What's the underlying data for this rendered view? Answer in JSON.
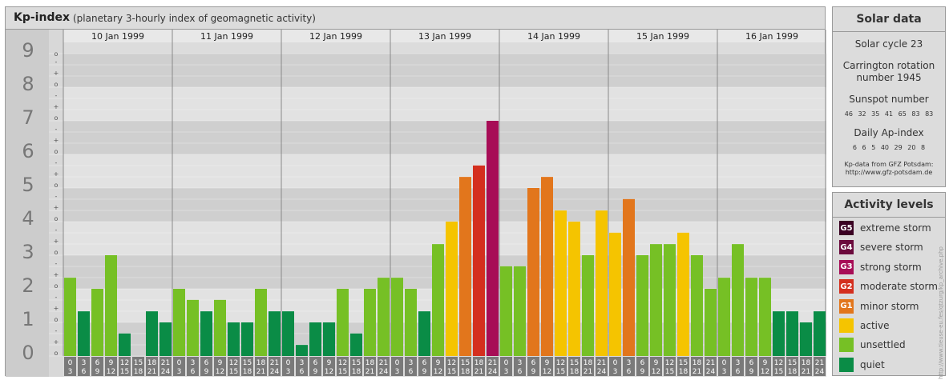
{
  "title": {
    "main": "Kp-index",
    "subtitle": "(planetary 3-hourly index of geomagnetic activity)"
  },
  "chart_data": {
    "type": "bar",
    "ylim": [
      0,
      9
    ],
    "y_major_ticks": [
      "0",
      "1",
      "2",
      "3",
      "4",
      "5",
      "6",
      "7",
      "8",
      "9"
    ],
    "y_minor_ticks": [
      "o",
      "+",
      "-"
    ],
    "days": [
      "10 Jan 1999",
      "11 Jan 1999",
      "12 Jan 1999",
      "13 Jan 1999",
      "14 Jan 1999",
      "15 Jan 1999",
      "16 Jan 1999"
    ],
    "interval_starts": [
      "0",
      "3",
      "6",
      "9",
      "12",
      "15",
      "18",
      "21"
    ],
    "interval_ends": [
      "3",
      "6",
      "9",
      "12",
      "15",
      "18",
      "21",
      "24"
    ],
    "values": [
      [
        2.33,
        1.33,
        2,
        3,
        0.67,
        0,
        1.33,
        1
      ],
      [
        2,
        1.67,
        1.33,
        1.67,
        1,
        1,
        2,
        1.33
      ],
      [
        1.33,
        0.33,
        1,
        1,
        2,
        0.67,
        2,
        2.33
      ],
      [
        2.33,
        2,
        1.33,
        3.33,
        4,
        5.33,
        5.67,
        7
      ],
      [
        2.67,
        2.67,
        5,
        5.33,
        4.33,
        4,
        3,
        4.33
      ],
      [
        3.67,
        4.67,
        3,
        3.33,
        3.33,
        3.67,
        3,
        2
      ],
      [
        2.33,
        3.33,
        2.33,
        2.33,
        1.33,
        1.33,
        1,
        1.33
      ]
    ],
    "levels": [
      [
        2,
        1,
        2,
        2,
        1,
        1,
        1,
        1
      ],
      [
        2,
        2,
        1,
        2,
        1,
        1,
        2,
        1
      ],
      [
        1,
        1,
        1,
        1,
        2,
        1,
        2,
        2
      ],
      [
        2,
        2,
        1,
        2,
        3,
        4,
        6,
        7
      ],
      [
        2,
        2,
        4,
        4,
        3,
        3,
        2,
        3
      ],
      [
        3,
        4,
        2,
        2,
        2,
        3,
        2,
        2
      ],
      [
        2,
        2,
        2,
        2,
        1,
        1,
        1,
        1
      ]
    ],
    "level_colors": {
      "1": "#0a8c46",
      "2": "#76c025",
      "3": "#f5c400",
      "4": "#e2761c",
      "5": "#d42f1e",
      "6": "#d42f1e",
      "7": "#a70d56",
      "8": "#6b0a3c",
      "9": "#3a0022"
    }
  },
  "solar_data": {
    "title": "Solar data",
    "cycle": "Solar cycle 23",
    "carrington_1": "Carrington rotation",
    "carrington_2": "number 1945",
    "sunspot_title": "Sunspot number",
    "sunspot_values": "46 32 35 41 65 83 83",
    "ap_title": "Daily Ap-index",
    "ap_values": "6 6 5 40 29 20 8",
    "source_1": "Kp-data from GFZ Potsdam:",
    "source_2": "http://www.gfz-potsdam.de"
  },
  "activity_levels": {
    "title": "Activity levels",
    "items": [
      {
        "code": "G5",
        "label": "extreme storm",
        "color": "#3a0022"
      },
      {
        "code": "G4",
        "label": "severe storm",
        "color": "#6b0a3c"
      },
      {
        "code": "G3",
        "label": "strong storm",
        "color": "#a70d56"
      },
      {
        "code": "G2",
        "label": "moderate storm",
        "color": "#d42f1e"
      },
      {
        "code": "G1",
        "label": "minor storm",
        "color": "#e2761c"
      },
      {
        "code": "",
        "label": "active",
        "color": "#f5c400"
      },
      {
        "code": "",
        "label": "unsettled",
        "color": "#76c025"
      },
      {
        "code": "",
        "label": "quiet",
        "color": "#0a8c46"
      }
    ]
  },
  "watermark": "http://www.tieuse-eu.fes/qtzurg/kp_archive.php"
}
